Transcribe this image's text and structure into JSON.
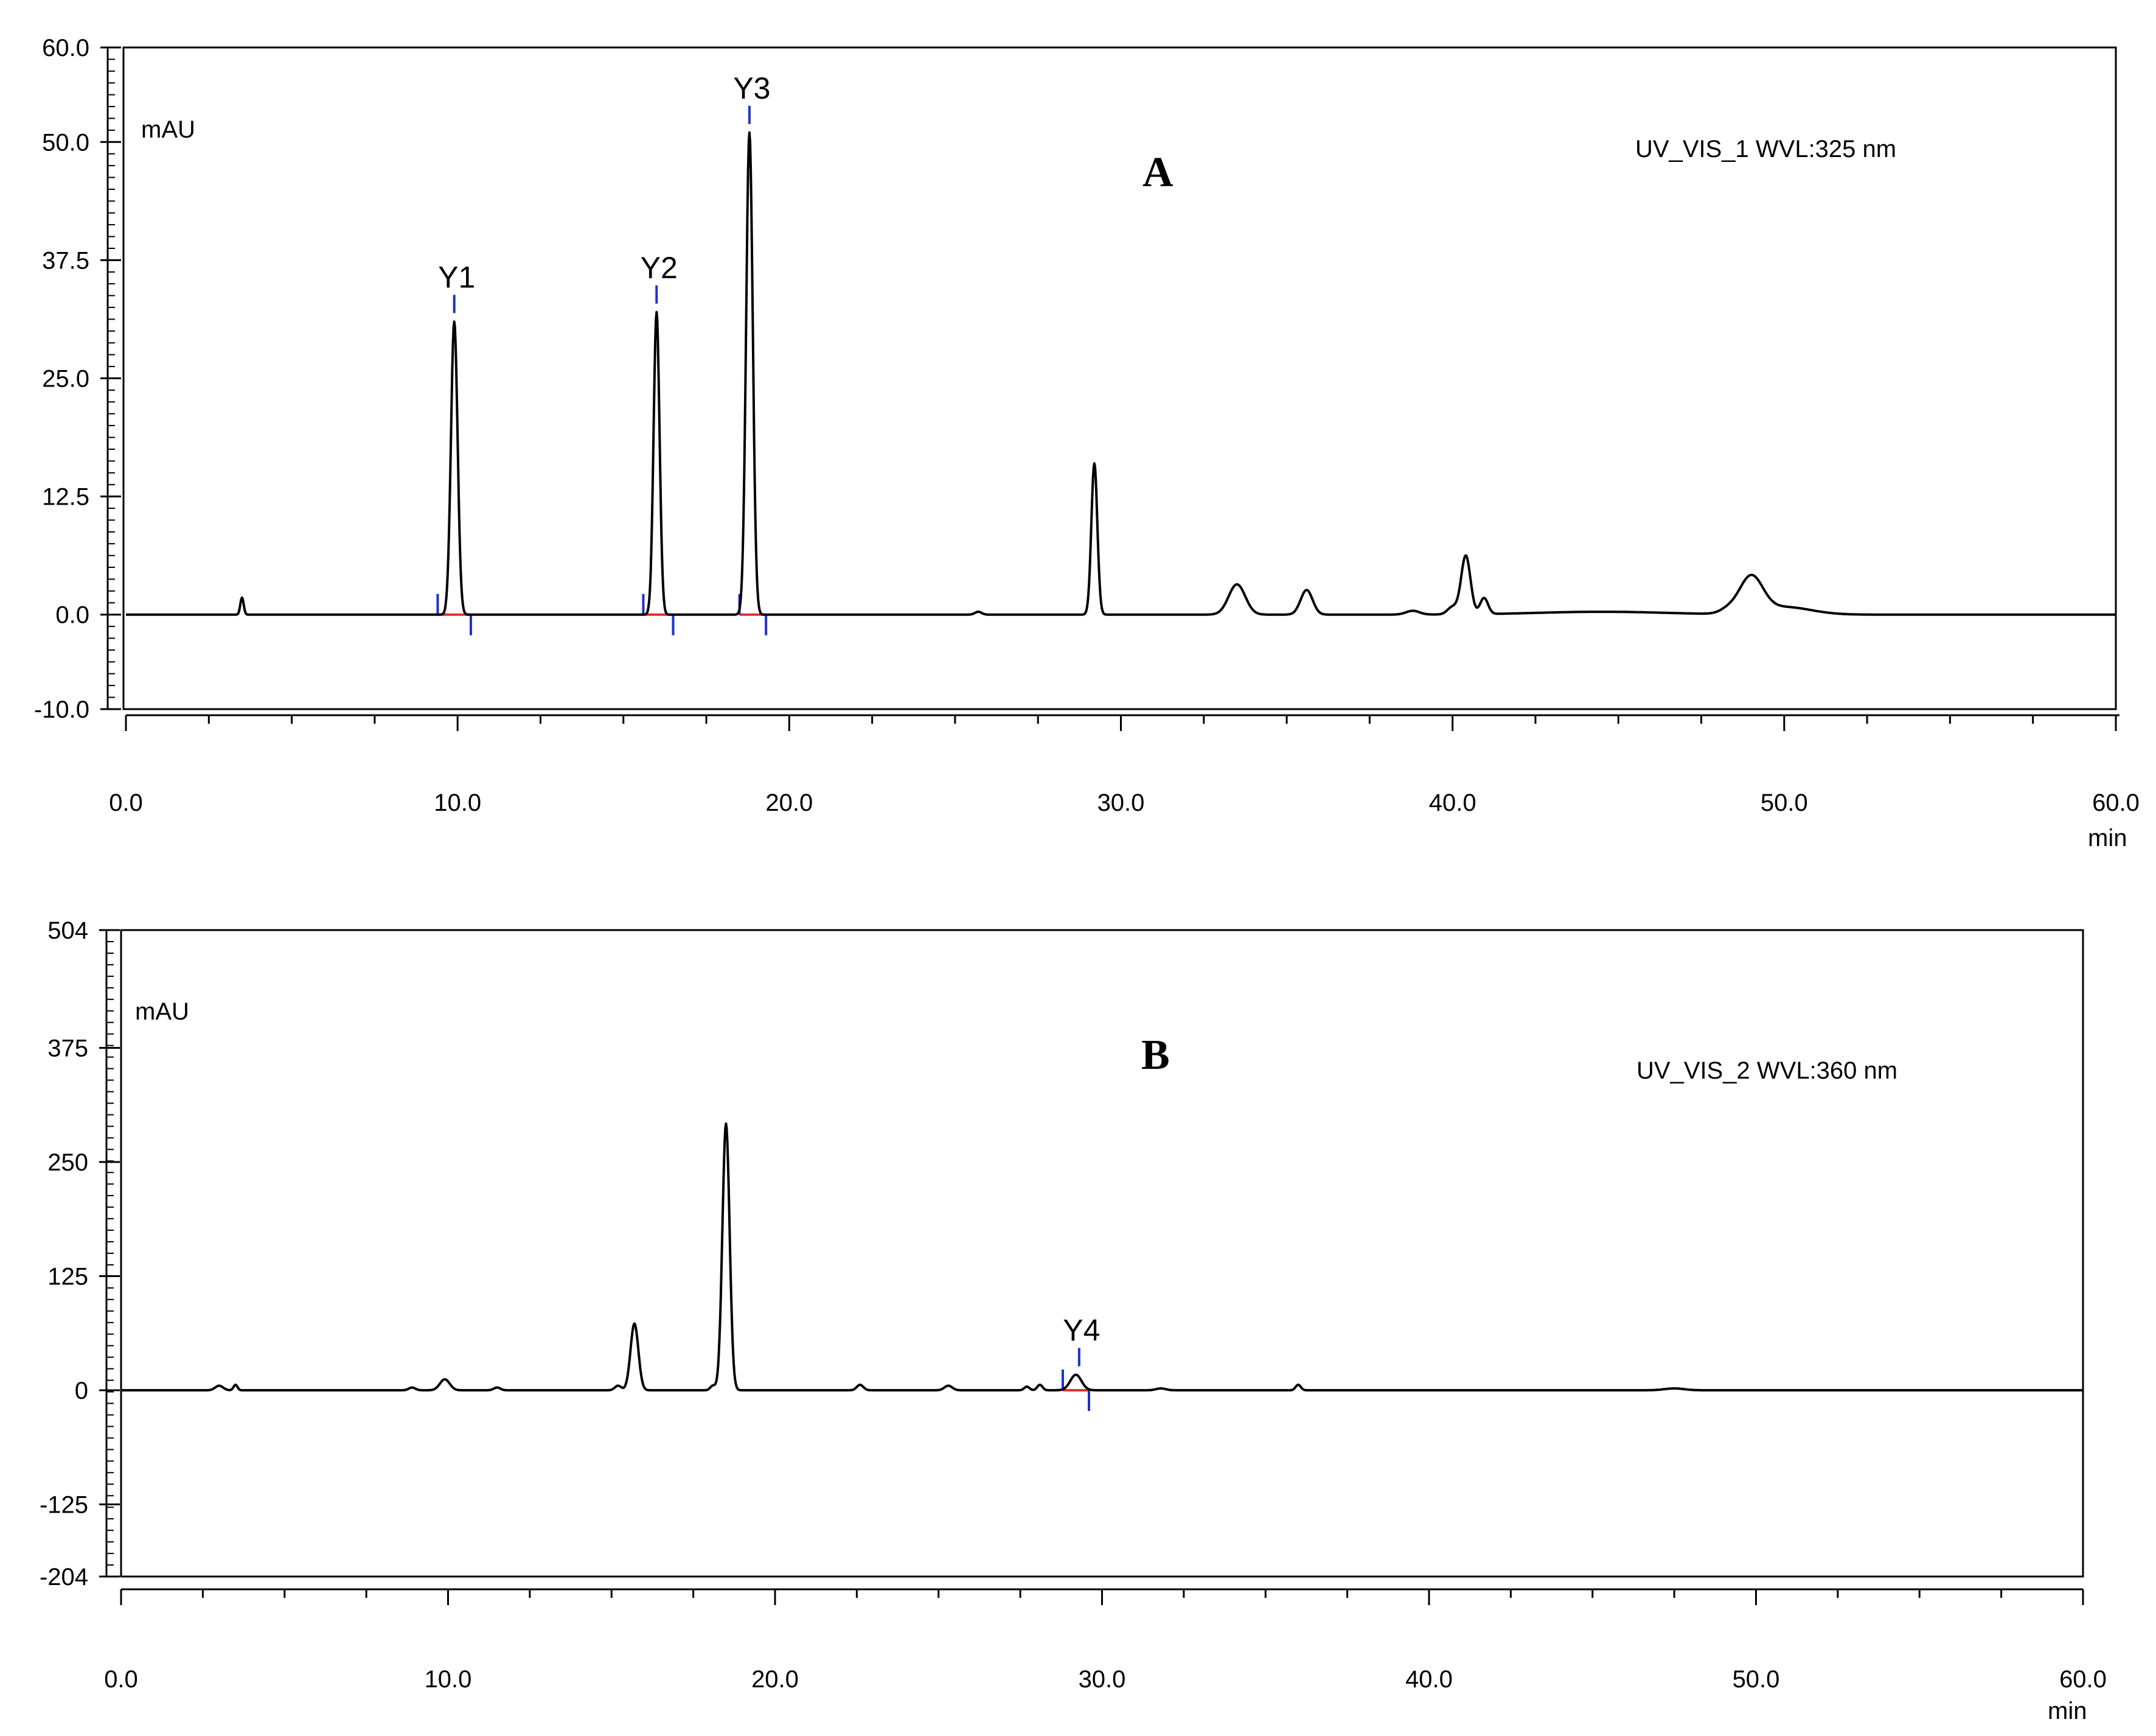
{
  "chart_data": [
    {
      "type": "line",
      "panel_label": "A",
      "channel_label": "UV_VIS_1 WVL:325 nm",
      "ylabel": "mAU",
      "xlabel": "min",
      "xlim": [
        0,
        60
      ],
      "ylim": [
        -10,
        60
      ],
      "x_ticks": [
        {
          "v": 0,
          "label": "0.0"
        },
        {
          "v": 10,
          "label": "10.0"
        },
        {
          "v": 20,
          "label": "20.0"
        },
        {
          "v": 30,
          "label": "30.0"
        },
        {
          "v": 40,
          "label": "40.0"
        },
        {
          "v": 50,
          "label": "50.0"
        },
        {
          "v": 60,
          "label": "60.0"
        }
      ],
      "y_ticks": [
        {
          "v": 60,
          "label": "60.0"
        },
        {
          "v": 50,
          "label": "50.0"
        },
        {
          "v": 37.5,
          "label": "37.5"
        },
        {
          "v": 25,
          "label": "25.0"
        },
        {
          "v": 12.5,
          "label": "12.5"
        },
        {
          "v": 0,
          "label": "0.0"
        },
        {
          "v": -10,
          "label": "-10.0"
        }
      ],
      "baseline": 0,
      "peaks": [
        {
          "x": 3.5,
          "y": 1.8,
          "w": 0.05
        },
        {
          "x": 9.9,
          "y": 31,
          "w": 0.1
        },
        {
          "x": 16.0,
          "y": 32,
          "w": 0.09
        },
        {
          "x": 18.8,
          "y": 51,
          "w": 0.1
        },
        {
          "x": 25.7,
          "y": 0.3,
          "w": 0.1
        },
        {
          "x": 29.2,
          "y": 16,
          "w": 0.09
        },
        {
          "x": 33.5,
          "y": 3.2,
          "w": 0.25
        },
        {
          "x": 35.6,
          "y": 2.6,
          "w": 0.18
        },
        {
          "x": 38.8,
          "y": 0.4,
          "w": 0.2
        },
        {
          "x": 40.0,
          "y": 0.8,
          "w": 0.15
        },
        {
          "x": 40.4,
          "y": 6.2,
          "w": 0.14
        },
        {
          "x": 40.95,
          "y": 1.7,
          "w": 0.12
        },
        {
          "x": 44.5,
          "y": 0.3,
          "w": 2.0
        },
        {
          "x": 48.3,
          "y": 0.4,
          "w": 0.25
        },
        {
          "x": 49.0,
          "y": 3.8,
          "w": 0.35
        },
        {
          "x": 50.0,
          "y": 0.8,
          "w": 0.8
        }
      ],
      "annotations": [
        {
          "label": "Y1",
          "x": 9.9,
          "start": 9.4,
          "end": 10.4
        },
        {
          "label": "Y2",
          "x": 16.0,
          "start": 15.6,
          "end": 16.5
        },
        {
          "label": "Y3",
          "x": 18.8,
          "start": 18.5,
          "end": 19.3
        }
      ]
    },
    {
      "type": "line",
      "panel_label": "B",
      "channel_label": "UV_VIS_2 WVL:360 nm",
      "ylabel": "mAU",
      "xlabel": "min",
      "xlim": [
        0,
        60
      ],
      "ylim": [
        -204,
        504
      ],
      "x_ticks": [
        {
          "v": 0,
          "label": "0.0"
        },
        {
          "v": 10,
          "label": "10.0"
        },
        {
          "v": 20,
          "label": "20.0"
        },
        {
          "v": 30,
          "label": "30.0"
        },
        {
          "v": 40,
          "label": "40.0"
        },
        {
          "v": 50,
          "label": "50.0"
        },
        {
          "v": 60,
          "label": "60.0"
        }
      ],
      "y_ticks": [
        {
          "v": 504,
          "label": "504"
        },
        {
          "v": 375,
          "label": "375"
        },
        {
          "v": 250,
          "label": "250"
        },
        {
          "v": 125,
          "label": "125"
        },
        {
          "v": 0,
          "label": "0"
        },
        {
          "v": -125,
          "label": "-125"
        },
        {
          "v": -204,
          "label": "-204"
        }
      ],
      "baseline": 0,
      "peaks": [
        {
          "x": 3.0,
          "y": 5,
          "w": 0.12
        },
        {
          "x": 3.5,
          "y": 6,
          "w": 0.06
        },
        {
          "x": 8.9,
          "y": 3,
          "w": 0.1
        },
        {
          "x": 9.9,
          "y": 12,
          "w": 0.15
        },
        {
          "x": 11.5,
          "y": 3,
          "w": 0.1
        },
        {
          "x": 15.2,
          "y": 5,
          "w": 0.1
        },
        {
          "x": 15.7,
          "y": 73,
          "w": 0.12
        },
        {
          "x": 18.1,
          "y": 5,
          "w": 0.08
        },
        {
          "x": 18.5,
          "y": 292,
          "w": 0.11
        },
        {
          "x": 22.6,
          "y": 6,
          "w": 0.1
        },
        {
          "x": 25.3,
          "y": 5,
          "w": 0.12
        },
        {
          "x": 27.7,
          "y": 4,
          "w": 0.08
        },
        {
          "x": 28.1,
          "y": 6,
          "w": 0.08
        },
        {
          "x": 29.2,
          "y": 17,
          "w": 0.17
        },
        {
          "x": 31.8,
          "y": 2,
          "w": 0.15
        },
        {
          "x": 36.0,
          "y": 6,
          "w": 0.08
        },
        {
          "x": 47.5,
          "y": 2,
          "w": 0.3
        }
      ],
      "annotations": [
        {
          "label": "Y4",
          "x": 29.3,
          "start": 28.8,
          "end": 29.6
        }
      ]
    }
  ]
}
